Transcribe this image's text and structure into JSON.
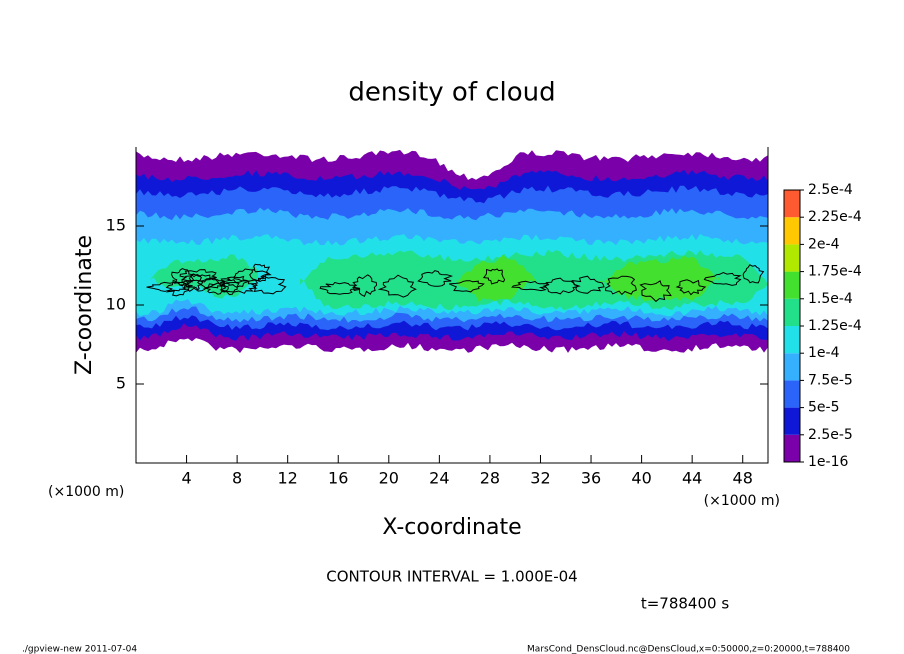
{
  "chart_data": {
    "type": "contour",
    "title": "density of cloud",
    "xlabel": "X-coordinate",
    "ylabel": "Z-coordinate",
    "unit_label": "(×1000 m)",
    "xlim": [
      0,
      50
    ],
    "xticks": [
      4,
      8,
      12,
      16,
      20,
      24,
      28,
      32,
      36,
      40,
      44,
      48
    ],
    "ylim": [
      0,
      20
    ],
    "yticks": [
      5,
      10,
      15
    ],
    "levels": [
      {
        "value": 1e-16,
        "label": "1e-16"
      },
      {
        "value": 2.5e-05,
        "label": "2.5e-5"
      },
      {
        "value": 5e-05,
        "label": "5e-5"
      },
      {
        "value": 7.5e-05,
        "label": "7.5e-5"
      },
      {
        "value": 0.0001,
        "label": "1e-4"
      },
      {
        "value": 0.000125,
        "label": "1.25e-4"
      },
      {
        "value": 0.00015,
        "label": "1.5e-4"
      },
      {
        "value": 0.000175,
        "label": "1.75e-4"
      },
      {
        "value": 0.0002,
        "label": "2e-4"
      },
      {
        "value": 0.000225,
        "label": "2.25e-4"
      },
      {
        "value": 0.00025,
        "label": "2.5e-4"
      }
    ],
    "colors": [
      "#7a00aa",
      "#1018d8",
      "#2a64f8",
      "#34b0ff",
      "#22e0e8",
      "#22e08a",
      "#44e030",
      "#b0e800",
      "#ffc800",
      "#ff5a30"
    ],
    "contour_note": "CONTOUR INTERVAL = 1.000E-04",
    "time_label": "t=788400 s",
    "footer_left": "./gpview-new  2011-07-04",
    "footer_right": "MarsCond_DensCloud.nc@DensCloud,x=0:50000,z=0:20000,t=788400"
  }
}
